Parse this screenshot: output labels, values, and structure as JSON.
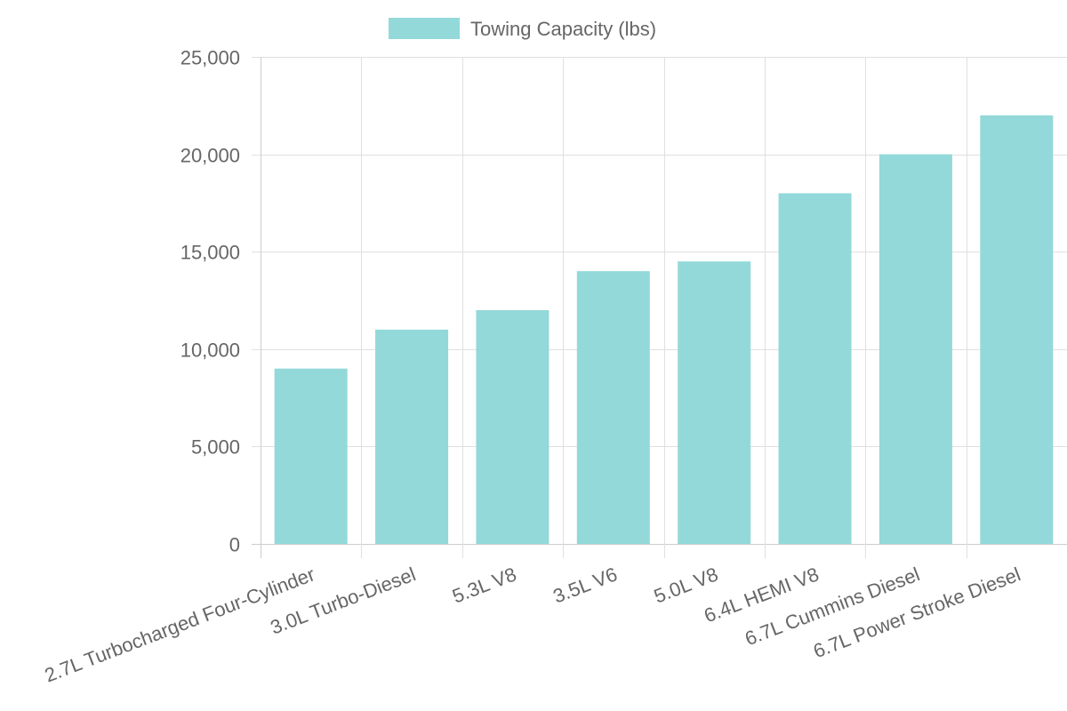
{
  "chart_data": {
    "type": "bar",
    "categories": [
      "2.7L Turbocharged Four-Cylinder",
      "3.0L Turbo-Diesel",
      "5.3L V8",
      "3.5L V6",
      "5.0L V8",
      "6.4L HEMI V8",
      "6.7L Cummins Diesel",
      "6.7L Power Stroke Diesel"
    ],
    "series": [
      {
        "name": "Towing Capacity (lbs)",
        "values": [
          9000,
          11000,
          12000,
          14000,
          14500,
          18000,
          20000,
          22000
        ],
        "color": "#93d9d9"
      }
    ],
    "ylim": [
      0,
      25000
    ],
    "yticks": [
      "0",
      "5,000",
      "10,000",
      "15,000",
      "20,000",
      "25,000"
    ],
    "ytick_values": [
      0,
      5000,
      10000,
      15000,
      20000,
      25000
    ],
    "grid": true,
    "legend": "top"
  }
}
